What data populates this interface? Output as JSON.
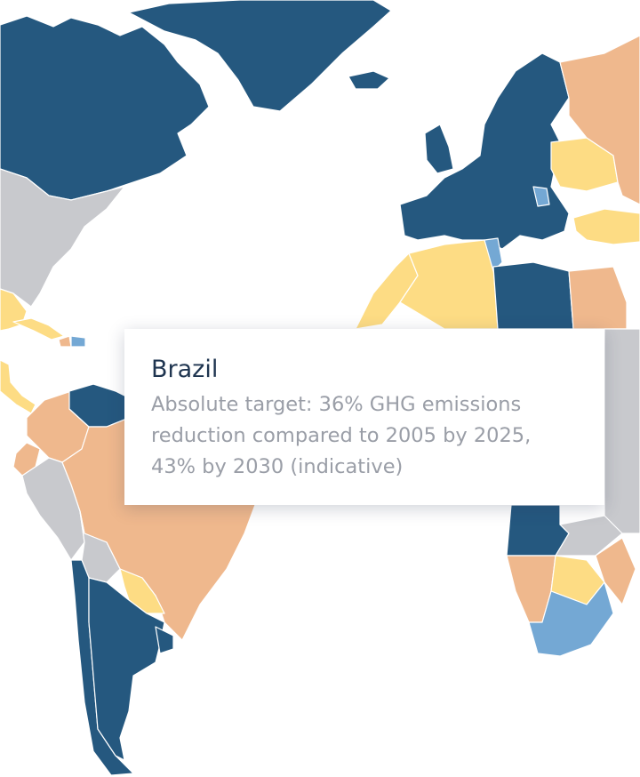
{
  "map": {
    "type": "choropleth",
    "colors": {
      "dark_blue": "#25587f",
      "light_blue": "#74a8d4",
      "peach": "#efb88d",
      "yellow": "#fddc84",
      "gray": "#c8c9cd",
      "ocean": "#ffffff"
    },
    "regions": [
      {
        "name": "Canada",
        "category": "dark_blue"
      },
      {
        "name": "Greenland",
        "category": "dark_blue"
      },
      {
        "name": "United States",
        "category": "gray"
      },
      {
        "name": "Mexico",
        "category": "yellow"
      },
      {
        "name": "Cuba",
        "category": "yellow"
      },
      {
        "name": "Haiti",
        "category": "peach"
      },
      {
        "name": "Dominican Republic",
        "category": "light_blue"
      },
      {
        "name": "Central America",
        "category": "yellow"
      },
      {
        "name": "Venezuela",
        "category": "dark_blue"
      },
      {
        "name": "Colombia",
        "category": "peach"
      },
      {
        "name": "Ecuador",
        "category": "peach"
      },
      {
        "name": "Peru",
        "category": "gray"
      },
      {
        "name": "Brazil",
        "category": "peach"
      },
      {
        "name": "Bolivia",
        "category": "gray"
      },
      {
        "name": "Paraguay",
        "category": "yellow"
      },
      {
        "name": "Chile",
        "category": "dark_blue"
      },
      {
        "name": "Argentina",
        "category": "dark_blue"
      },
      {
        "name": "Uruguay",
        "category": "dark_blue"
      },
      {
        "name": "Europe",
        "category": "dark_blue"
      },
      {
        "name": "Ukraine",
        "category": "yellow"
      },
      {
        "name": "Serbia",
        "category": "light_blue"
      },
      {
        "name": "Russia",
        "category": "peach"
      },
      {
        "name": "Turkey",
        "category": "yellow"
      },
      {
        "name": "Morocco",
        "category": "yellow"
      },
      {
        "name": "Algeria",
        "category": "yellow"
      },
      {
        "name": "Tunisia",
        "category": "light_blue"
      },
      {
        "name": "Libya",
        "category": "dark_blue"
      },
      {
        "name": "Egypt",
        "category": "peach"
      },
      {
        "name": "Angola",
        "category": "dark_blue"
      },
      {
        "name": "Namibia",
        "category": "peach"
      },
      {
        "name": "Botswana",
        "category": "yellow"
      },
      {
        "name": "South Africa",
        "category": "light_blue"
      },
      {
        "name": "Zambia",
        "category": "gray"
      }
    ]
  },
  "tooltip": {
    "title": "Brazil",
    "lines": [
      "Absolute target: 36% GHG emissions",
      "reduction compared to 2005 by 2025,",
      "43% by 2030 (indicative)"
    ]
  }
}
